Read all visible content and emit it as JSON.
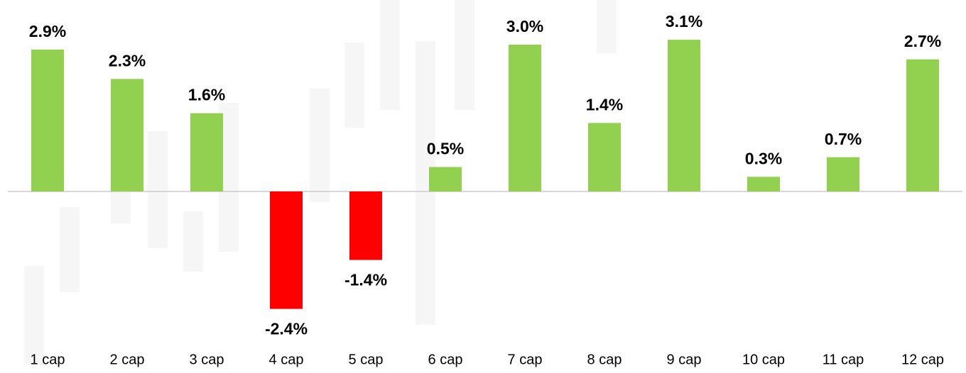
{
  "chart_data": {
    "type": "bar",
    "categories": [
      "1 cap",
      "2 cap",
      "3 cap",
      "4 cap",
      "5 cap",
      "6 cap",
      "7 cap",
      "8 cap",
      "9 cap",
      "10 cap",
      "11 cap",
      "12 cap"
    ],
    "values": [
      2.9,
      2.3,
      1.6,
      -2.4,
      -1.4,
      0.5,
      3.0,
      1.4,
      3.1,
      0.3,
      0.7,
      2.7
    ],
    "value_labels": [
      "2.9%",
      "2.3%",
      "1.6%",
      "-2.4%",
      "-1.4%",
      "0.5%",
      "3.0%",
      "1.4%",
      "3.1%",
      "0.3%",
      "0.7%",
      "2.7%"
    ],
    "positive_color": "#92d050",
    "negative_color": "#ff0000"
  }
}
